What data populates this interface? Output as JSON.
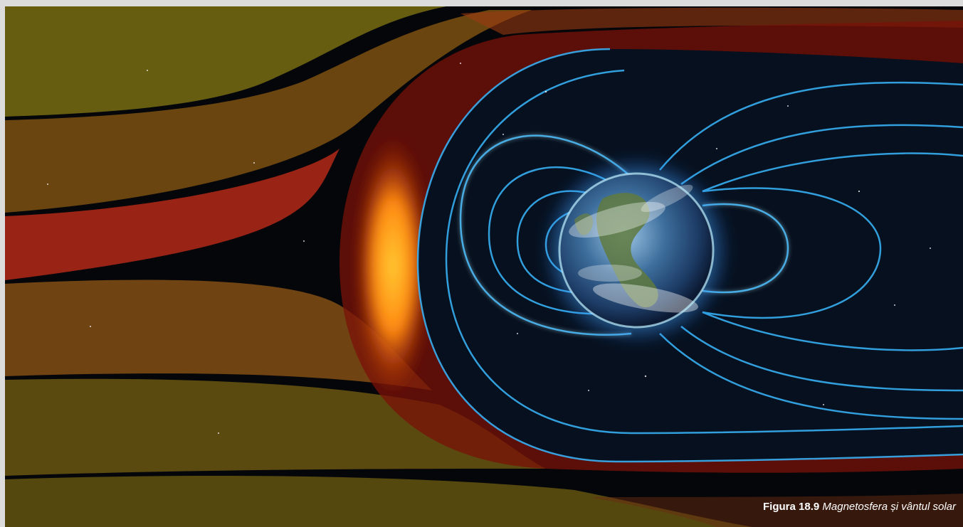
{
  "figure": {
    "description_icon": "earth-magnetosphere-illustration",
    "colors": {
      "solar_wind_yellow": "#e8c21a",
      "solar_wind_red": "#d8301a",
      "bow_shock_orange": "#ff9a1a",
      "magnetosheath_red": "#7a1208",
      "field_line_blue": "#3ab8ff",
      "space": "#05060a"
    },
    "caption": {
      "label": "Figura 18.9",
      "text": "Magnetosfera și vântul solar"
    }
  }
}
